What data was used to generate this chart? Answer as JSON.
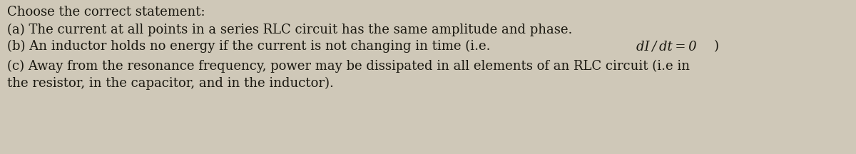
{
  "title": "Choose the correct statement:",
  "line_a": "(a) The current at all points in a series RLC circuit has the same amplitude and phase.",
  "line_b_prefix": "(b) An inductor holds no energy if the current is not changing in time (i.e. ",
  "line_b_math": "dI / dt = 0",
  "line_b_suffix": ")",
  "line_c1": "(c) Away from the resonance frequency, power may be dissipated in all elements of an RLC circuit (i.e in",
  "line_c2": "the resistor, in the capacitor, and in the inductor).",
  "bg_color": "#cfc8b8",
  "text_color": "#1a1810",
  "font_size": 13.0,
  "fig_width": 12.0,
  "fig_height": 2.16
}
